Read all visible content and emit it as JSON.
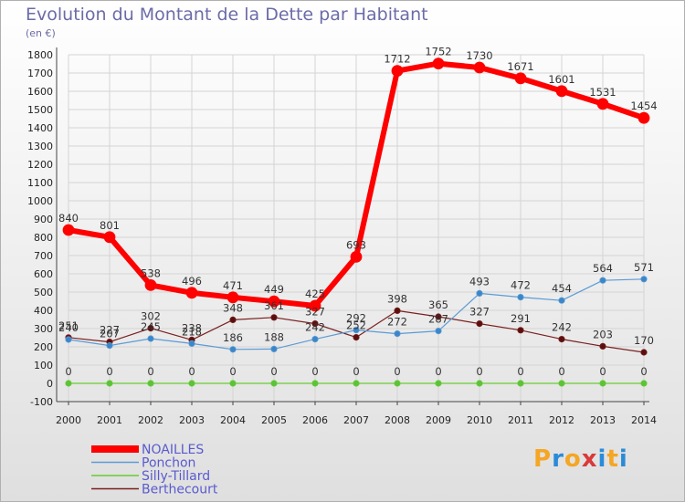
{
  "title": "Evolution du Montant de la Dette par Habitant",
  "unit": "(en €)",
  "logo": {
    "text": "Proxiti",
    "letter_colors": [
      "#f5a623",
      "#2a8bd8",
      "#f5a623",
      "#d93a3a",
      "#2a8bd8",
      "#f5a623",
      "#2a8bd8"
    ]
  },
  "chart_data": {
    "type": "line",
    "x": [
      "2000",
      "2001",
      "2002",
      "2003",
      "2004",
      "2005",
      "2006",
      "2007",
      "2008",
      "2009",
      "2010",
      "2011",
      "2012",
      "2013",
      "2014"
    ],
    "ylim": [
      -100,
      1800
    ],
    "yticks": [
      -100,
      0,
      100,
      200,
      300,
      400,
      500,
      600,
      700,
      800,
      900,
      1000,
      1100,
      1200,
      1300,
      1400,
      1500,
      1600,
      1700,
      1800
    ],
    "legend_position": "bottom-left",
    "series": [
      {
        "name": "NOAILLES",
        "color": "#ff0000",
        "values": [
          840,
          801,
          538,
          496,
          471,
          449,
          425,
          693,
          1712,
          1752,
          1730,
          1671,
          1601,
          1531,
          1454
        ]
      },
      {
        "name": "Ponchon",
        "color": "#5b9bd5",
        "values": [
          240,
          207,
          245,
          218,
          186,
          188,
          242,
          292,
          272,
          287,
          493,
          472,
          454,
          564,
          571
        ]
      },
      {
        "name": "Silly-Tillard",
        "color": "#66cc33",
        "values": [
          0,
          0,
          0,
          0,
          0,
          0,
          0,
          0,
          0,
          0,
          0,
          0,
          0,
          0,
          0
        ]
      },
      {
        "name": "Berthecourt",
        "color": "#7b1f1f",
        "values": [
          251,
          227,
          302,
          238,
          348,
          361,
          327,
          252,
          398,
          365,
          327,
          291,
          242,
          203,
          170
        ]
      }
    ]
  }
}
